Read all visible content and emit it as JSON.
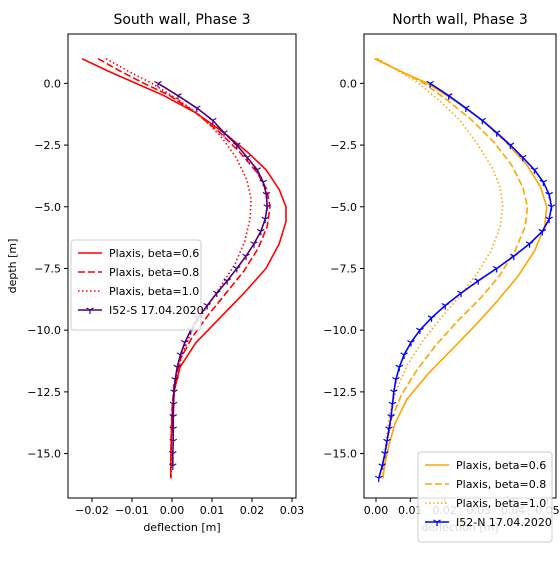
{
  "chart_data": [
    {
      "type": "line",
      "title": "South wall, Phase 3",
      "xlabel": "deflection [m]",
      "ylabel": "depth [m]",
      "xlim": [
        -0.026,
        0.031
      ],
      "ylim": [
        -16.8,
        2.0
      ],
      "xticks": [
        -0.02,
        -0.01,
        0.0,
        0.01,
        0.02,
        0.03
      ],
      "xtick_labels": [
        "−0.02",
        "−0.01",
        "0.00",
        "0.01",
        "0.02",
        "0.03"
      ],
      "yticks": [
        0.0,
        -2.5,
        -5.0,
        -7.5,
        -10.0,
        -12.5,
        -15.0
      ],
      "ytick_labels": [
        "0.0",
        "−2.5",
        "−5.0",
        "−7.5",
        "−10.0",
        "−12.5",
        "−15.0"
      ],
      "grid": false,
      "legend_position": "center-left",
      "series": [
        {
          "name": "Plaxis, beta=0.6",
          "color": "#ff0000",
          "style": "solid",
          "marker": "none",
          "points": [
            [
              -0.0225,
              1.0
            ],
            [
              -0.016,
              0.5
            ],
            [
              -0.009,
              0.0
            ],
            [
              -0.002,
              -0.5
            ],
            [
              0.006,
              -1.2
            ],
            [
              0.013,
              -2.0
            ],
            [
              0.019,
              -2.8
            ],
            [
              0.0235,
              -3.5
            ],
            [
              0.0268,
              -4.3
            ],
            [
              0.0285,
              -5.0
            ],
            [
              0.0285,
              -5.6
            ],
            [
              0.0268,
              -6.5
            ],
            [
              0.0235,
              -7.5
            ],
            [
              0.018,
              -8.5
            ],
            [
              0.012,
              -9.5
            ],
            [
              0.006,
              -10.5
            ],
            [
              0.002,
              -11.5
            ],
            [
              0.0005,
              -12.5
            ],
            [
              0.0,
              -13.5
            ],
            [
              -0.0002,
              -14.5
            ],
            [
              -0.0003,
              -15.5
            ],
            [
              -0.0003,
              -16.0
            ]
          ]
        },
        {
          "name": "Plaxis, beta=0.8",
          "color": "#ff0000",
          "style": "dashed",
          "marker": "none",
          "points": [
            [
              -0.0185,
              1.0
            ],
            [
              -0.013,
              0.5
            ],
            [
              -0.007,
              0.0
            ],
            [
              -0.0005,
              -0.5
            ],
            [
              0.006,
              -1.2
            ],
            [
              0.012,
              -2.0
            ],
            [
              0.017,
              -2.8
            ],
            [
              0.0212,
              -3.6
            ],
            [
              0.0237,
              -4.3
            ],
            [
              0.0245,
              -5.0
            ],
            [
              0.0238,
              -5.8
            ],
            [
              0.0215,
              -6.7
            ],
            [
              0.018,
              -7.6
            ],
            [
              0.0135,
              -8.5
            ],
            [
              0.009,
              -9.4
            ],
            [
              0.005,
              -10.3
            ],
            [
              0.002,
              -11.2
            ],
            [
              0.0005,
              -12.2
            ],
            [
              0.0,
              -13.2
            ],
            [
              -0.0002,
              -14.2
            ],
            [
              -0.0003,
              -15.2
            ],
            [
              -0.0003,
              -16.0
            ]
          ]
        },
        {
          "name": "Plaxis, beta=1.0",
          "color": "#ff0000",
          "style": "dotted",
          "marker": "none",
          "points": [
            [
              -0.0165,
              1.0
            ],
            [
              -0.011,
              0.5
            ],
            [
              -0.005,
              0.0
            ],
            [
              0.001,
              -0.6
            ],
            [
              0.007,
              -1.3
            ],
            [
              0.012,
              -2.1
            ],
            [
              0.016,
              -3.0
            ],
            [
              0.0187,
              -3.9
            ],
            [
              0.0198,
              -4.7
            ],
            [
              0.0195,
              -5.5
            ],
            [
              0.0182,
              -6.4
            ],
            [
              0.0158,
              -7.3
            ],
            [
              0.0123,
              -8.2
            ],
            [
              0.0085,
              -9.1
            ],
            [
              0.005,
              -10.0
            ],
            [
              0.0025,
              -11.0
            ],
            [
              0.001,
              -12.0
            ],
            [
              0.0002,
              -13.0
            ],
            [
              -0.0001,
              -14.0
            ],
            [
              -0.0002,
              -15.0
            ],
            [
              -0.0002,
              -16.0
            ]
          ]
        },
        {
          "name": "I52-S 17.04.2020",
          "color": "#4b0082",
          "style": "solid",
          "marker": "tri",
          "points": [
            [
              -0.0035,
              0.0
            ],
            [
              0.0015,
              -0.5
            ],
            [
              0.0062,
              -1.0
            ],
            [
              0.0102,
              -1.5
            ],
            [
              0.013,
              -2.0
            ],
            [
              0.0162,
              -2.5
            ],
            [
              0.0188,
              -3.0
            ],
            [
              0.0213,
              -3.5
            ],
            [
              0.0228,
              -4.0
            ],
            [
              0.0236,
              -4.5
            ],
            [
              0.0238,
              -5.0
            ],
            [
              0.0233,
              -5.5
            ],
            [
              0.0222,
              -6.0
            ],
            [
              0.0205,
              -6.5
            ],
            [
              0.0185,
              -7.0
            ],
            [
              0.0162,
              -7.5
            ],
            [
              0.0138,
              -8.0
            ],
            [
              0.0112,
              -8.5
            ],
            [
              0.0088,
              -9.0
            ],
            [
              0.0065,
              -9.5
            ],
            [
              0.0047,
              -10.0
            ],
            [
              0.0032,
              -10.5
            ],
            [
              0.0021,
              -11.0
            ],
            [
              0.0013,
              -11.5
            ],
            [
              0.0008,
              -12.0
            ],
            [
              0.0005,
              -12.5
            ],
            [
              0.0004,
              -13.0
            ],
            [
              0.0003,
              -13.5
            ],
            [
              0.0003,
              -14.0
            ],
            [
              0.0003,
              -14.5
            ],
            [
              0.0002,
              -15.0
            ],
            [
              0.0002,
              -15.5
            ]
          ]
        }
      ]
    },
    {
      "type": "line",
      "title": "North wall, Phase 3",
      "xlabel": "deflection [m]",
      "ylabel": "",
      "xlim": [
        -0.0035,
        0.0525
      ],
      "ylim": [
        -16.8,
        2.0
      ],
      "xticks": [
        0.0,
        0.01,
        0.02,
        0.03,
        0.04,
        0.05
      ],
      "xtick_labels": [
        "0.00",
        "0.01",
        "0.02",
        "0.03",
        "0.04",
        "0.05"
      ],
      "yticks": [
        0.0,
        -2.5,
        -5.0,
        -7.5,
        -10.0,
        -12.5,
        -15.0
      ],
      "ytick_labels": [
        "0.0",
        "−2.5",
        "−5.0",
        "−7.5",
        "−10.0",
        "−12.5",
        "−15.0"
      ],
      "grid": false,
      "legend_position": "lower-right",
      "series": [
        {
          "name": "Plaxis, beta=0.6",
          "color": "#ffa500",
          "style": "solid",
          "marker": "none",
          "points": [
            [
              -0.0005,
              1.0
            ],
            [
              0.007,
              0.5
            ],
            [
              0.015,
              0.0
            ],
            [
              0.023,
              -0.7
            ],
            [
              0.031,
              -1.5
            ],
            [
              0.038,
              -2.4
            ],
            [
              0.044,
              -3.3
            ],
            [
              0.048,
              -4.2
            ],
            [
              0.0498,
              -5.0
            ],
            [
              0.0492,
              -5.8
            ],
            [
              0.0462,
              -6.8
            ],
            [
              0.0415,
              -7.8
            ],
            [
              0.0355,
              -8.8
            ],
            [
              0.029,
              -9.8
            ],
            [
              0.022,
              -10.8
            ],
            [
              0.015,
              -11.8
            ],
            [
              0.009,
              -12.8
            ],
            [
              0.0055,
              -13.8
            ],
            [
              0.0035,
              -14.8
            ],
            [
              0.0025,
              -15.5
            ],
            [
              0.002,
              -16.0
            ]
          ]
        },
        {
          "name": "Plaxis, beta=0.8",
          "color": "#ffa500",
          "style": "dashed",
          "marker": "none",
          "points": [
            [
              0.0,
              1.0
            ],
            [
              0.007,
              0.5
            ],
            [
              0.014,
              0.0
            ],
            [
              0.021,
              -0.7
            ],
            [
              0.028,
              -1.5
            ],
            [
              0.0345,
              -2.4
            ],
            [
              0.0395,
              -3.3
            ],
            [
              0.0428,
              -4.2
            ],
            [
              0.0442,
              -5.0
            ],
            [
              0.0435,
              -5.8
            ],
            [
              0.0405,
              -6.8
            ],
            [
              0.036,
              -7.8
            ],
            [
              0.0305,
              -8.7
            ],
            [
              0.024,
              -9.6
            ],
            [
              0.0175,
              -10.6
            ],
            [
              0.012,
              -11.6
            ],
            [
              0.0075,
              -12.6
            ],
            [
              0.0045,
              -13.6
            ],
            [
              0.003,
              -14.6
            ],
            [
              0.0022,
              -15.5
            ],
            [
              0.002,
              -16.0
            ]
          ]
        },
        {
          "name": "Plaxis, beta=1.0",
          "color": "#ffa500",
          "style": "dotted",
          "marker": "none",
          "points": [
            [
              0.0005,
              1.0
            ],
            [
              0.0065,
              0.5
            ],
            [
              0.0125,
              0.0
            ],
            [
              0.0185,
              -0.7
            ],
            [
              0.0245,
              -1.5
            ],
            [
              0.0298,
              -2.5
            ],
            [
              0.0338,
              -3.4
            ],
            [
              0.0362,
              -4.2
            ],
            [
              0.037,
              -5.0
            ],
            [
              0.0362,
              -5.8
            ],
            [
              0.0335,
              -6.8
            ],
            [
              0.0295,
              -7.7
            ],
            [
              0.0245,
              -8.6
            ],
            [
              0.019,
              -9.5
            ],
            [
              0.0138,
              -10.4
            ],
            [
              0.0092,
              -11.4
            ],
            [
              0.006,
              -12.4
            ],
            [
              0.004,
              -13.4
            ],
            [
              0.003,
              -14.4
            ],
            [
              0.0022,
              -15.4
            ],
            [
              0.002,
              -16.0
            ]
          ]
        },
        {
          "name": "I52-N 17.04.2020",
          "color": "#0000ff",
          "style": "solid",
          "marker": "tri",
          "points": [
            [
              0.0158,
              0.0
            ],
            [
              0.0212,
              -0.5
            ],
            [
              0.0262,
              -1.0
            ],
            [
              0.031,
              -1.5
            ],
            [
              0.0352,
              -2.0
            ],
            [
              0.0392,
              -2.5
            ],
            [
              0.0428,
              -3.0
            ],
            [
              0.0462,
              -3.5
            ],
            [
              0.0488,
              -4.0
            ],
            [
              0.0505,
              -4.5
            ],
            [
              0.0512,
              -5.0
            ],
            [
              0.0505,
              -5.5
            ],
            [
              0.0485,
              -6.0
            ],
            [
              0.0448,
              -6.5
            ],
            [
              0.0402,
              -7.0
            ],
            [
              0.0352,
              -7.5
            ],
            [
              0.0298,
              -8.0
            ],
            [
              0.0248,
              -8.5
            ],
            [
              0.0202,
              -9.0
            ],
            [
              0.0162,
              -9.5
            ],
            [
              0.0128,
              -10.0
            ],
            [
              0.0102,
              -10.5
            ],
            [
              0.0082,
              -11.0
            ],
            [
              0.0068,
              -11.5
            ],
            [
              0.0058,
              -12.0
            ],
            [
              0.0052,
              -12.5
            ],
            [
              0.0048,
              -13.0
            ],
            [
              0.0044,
              -13.5
            ],
            [
              0.0038,
              -14.0
            ],
            [
              0.0032,
              -14.5
            ],
            [
              0.0026,
              -15.0
            ],
            [
              0.0018,
              -15.5
            ],
            [
              0.0008,
              -16.0
            ]
          ]
        }
      ]
    }
  ]
}
